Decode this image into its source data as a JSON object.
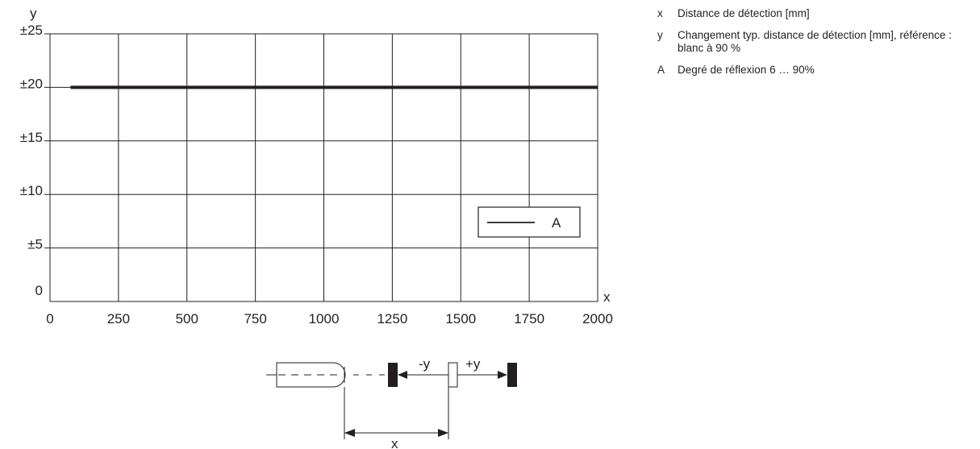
{
  "chart_data": {
    "type": "line",
    "x": [
      75,
      2000
    ],
    "series": [
      {
        "name": "A",
        "values": [
          20,
          20
        ],
        "color": "#231f20"
      }
    ],
    "xlabel": "x",
    "ylabel": "y",
    "xlim": [
      0,
      2000
    ],
    "ylim": [
      0,
      25
    ],
    "xticks": [
      "0",
      "250",
      "500",
      "750",
      "1000",
      "1250",
      "1500",
      "1750",
      "2000"
    ],
    "yticks": [
      "0",
      "±5",
      "±10",
      "±15",
      "±20",
      "±25"
    ],
    "grid": true,
    "legend_position": "lower-right"
  },
  "notes": [
    {
      "key": "x",
      "text": "Distance de détection [mm]"
    },
    {
      "key": "y",
      "text": "Changement typ. distance de détection [mm], référence : blanc à 90 %"
    },
    {
      "key": "A",
      "text": "Degré de réflexion 6 … 90%"
    }
  ],
  "diagram": {
    "minus_y": "-y",
    "plus_y": "+y",
    "x_label": "x"
  }
}
